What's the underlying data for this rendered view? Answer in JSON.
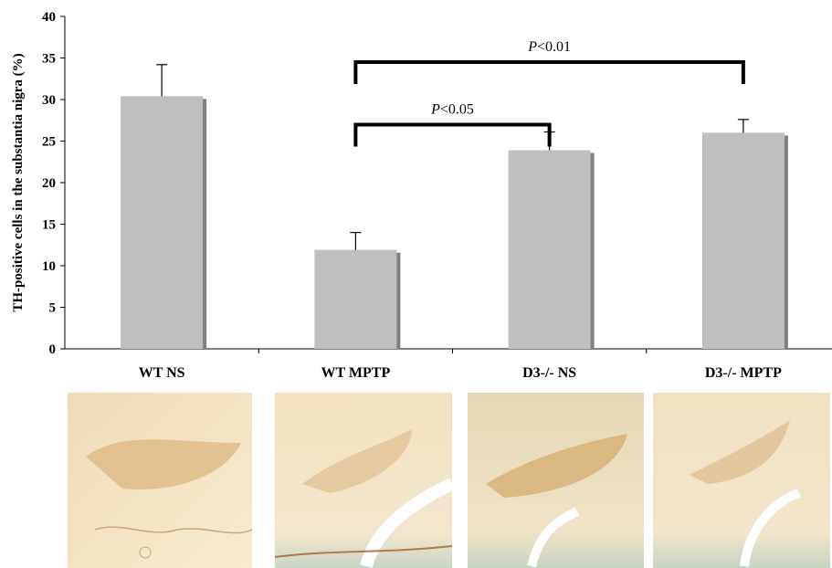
{
  "chart_data": {
    "type": "bar",
    "ylabel": "TH-positive cells in the substantia nigra (%)",
    "ylim": [
      0,
      40
    ],
    "yticks": [
      0,
      5,
      10,
      15,
      20,
      25,
      30,
      35,
      40
    ],
    "categories": [
      "WT NS",
      "WT MPTP",
      "D3-/- NS",
      "D3-/- MPTP"
    ],
    "values": [
      30.4,
      11.9,
      23.9,
      26.0
    ],
    "errors": [
      3.8,
      2.1,
      2.2,
      1.6
    ],
    "bar_color": "#bfbfbf",
    "bar_shadow_color": "#808080",
    "significance": [
      {
        "from": 1,
        "to": 2,
        "level": 25.0,
        "p_italic": "P",
        "p_rest": "<0.05"
      },
      {
        "from": 1,
        "to": 3,
        "level": 34.5,
        "p_italic": "P",
        "p_rest": "<0.01"
      }
    ],
    "grid": false
  },
  "micrographs": [
    "WT NS",
    "WT MPTP",
    "D3-/- NS",
    "D3-/- MPTP"
  ]
}
